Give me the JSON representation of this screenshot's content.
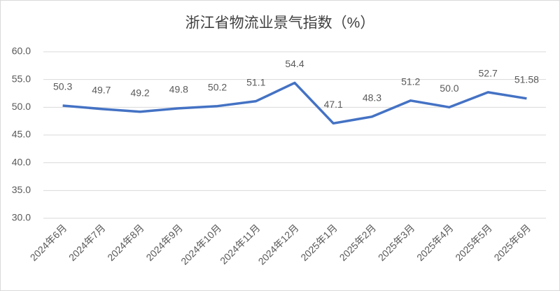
{
  "chart_data": {
    "type": "line",
    "title": "浙江省物流业景气指数（%）",
    "categories": [
      "2024年6月",
      "2024年7月",
      "2024年8月",
      "2024年9月",
      "2024年10月",
      "2024年11月",
      "2024年12月",
      "2025年1月",
      "2025年2月",
      "2025年3月",
      "2025年4月",
      "2025年5月",
      "2025年6月"
    ],
    "values": [
      50.3,
      49.7,
      49.2,
      49.8,
      50.2,
      51.1,
      54.4,
      47.1,
      48.3,
      51.2,
      50.0,
      52.7,
      51.58
    ],
    "value_labels": [
      "50.3",
      "49.7",
      "49.2",
      "49.8",
      "50.2",
      "51.1",
      "54.4",
      "47.1",
      "48.3",
      "51.2",
      "50.0",
      "52.7",
      "51.58"
    ],
    "color": "#4472c4",
    "ylim": [
      30,
      60
    ],
    "yticks": [
      {
        "value": 30,
        "label": "30.0"
      },
      {
        "value": 35,
        "label": "35.0"
      },
      {
        "value": 40,
        "label": "40.0"
      },
      {
        "value": 45,
        "label": "45.0"
      },
      {
        "value": 50,
        "label": "50.0"
      },
      {
        "value": 55,
        "label": "55.0"
      },
      {
        "value": 60,
        "label": "60.0"
      }
    ],
    "grid": true
  }
}
